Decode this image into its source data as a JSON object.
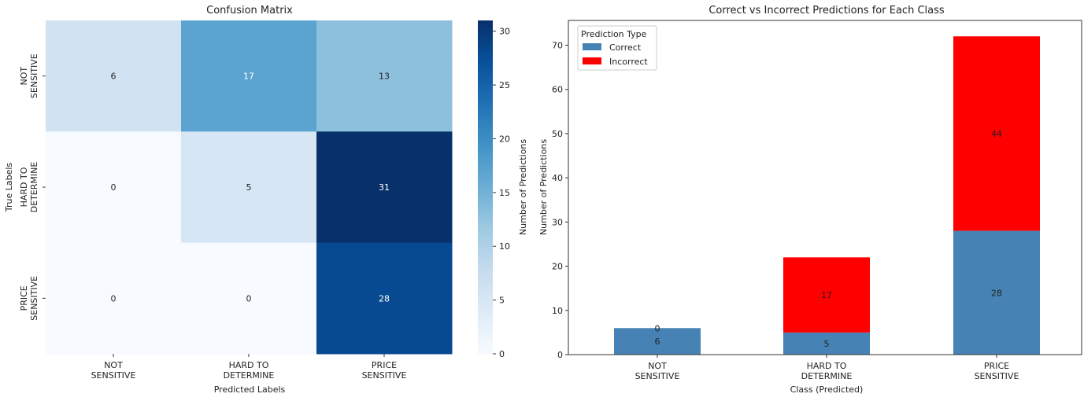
{
  "chart_data": [
    {
      "type": "heatmap",
      "title": "Confusion Matrix",
      "xlabel": "Predicted Labels",
      "ylabel": "True Labels",
      "x_categories": [
        [
          "NOT",
          "SENSITIVE"
        ],
        [
          "HARD TO",
          "DETERMINE"
        ],
        [
          "PRICE",
          "SENSITIVE"
        ]
      ],
      "y_categories": [
        [
          "NOT",
          "SENSITIVE"
        ],
        [
          "HARD TO",
          "DETERMINE"
        ],
        [
          "PRICE",
          "SENSITIVE"
        ]
      ],
      "values": [
        [
          6,
          17,
          13
        ],
        [
          0,
          5,
          31
        ],
        [
          0,
          0,
          28
        ]
      ],
      "colormap": "Blues",
      "colorbar": {
        "label": "Number of Predictions",
        "ticks": [
          0,
          5,
          10,
          15,
          20,
          25,
          30
        ],
        "range": [
          0,
          31
        ]
      }
    },
    {
      "type": "bar",
      "stacked": true,
      "title": "Correct vs Incorrect Predictions for Each Class",
      "xlabel": "Class (Predicted)",
      "ylabel": "Number of Predictions",
      "categories": [
        [
          "NOT",
          "SENSITIVE"
        ],
        [
          "HARD TO",
          "DETERMINE"
        ],
        [
          "PRICE",
          "SENSITIVE"
        ]
      ],
      "series": [
        {
          "name": "Correct",
          "values": [
            6,
            5,
            28
          ],
          "color": "#4682b4"
        },
        {
          "name": "Incorrect",
          "values": [
            0,
            17,
            44
          ],
          "color": "#ff0000"
        }
      ],
      "ylim": [
        0,
        75.6
      ],
      "yticks": [
        0,
        10,
        20,
        30,
        40,
        50,
        60,
        70
      ],
      "legend": {
        "title": "Prediction Type",
        "placement": "top-left"
      },
      "grid": false
    }
  ]
}
